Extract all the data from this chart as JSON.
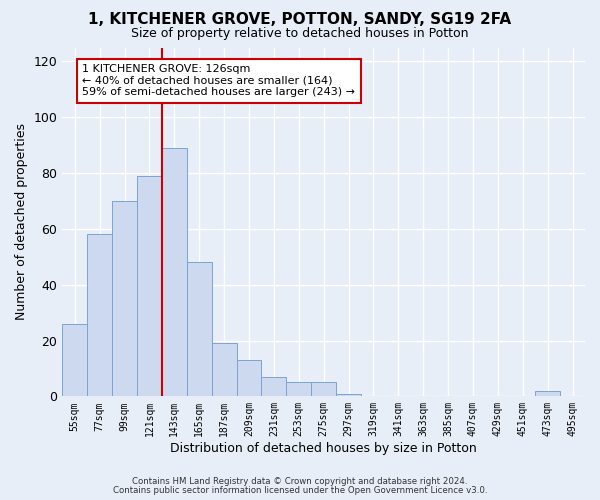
{
  "title": "1, KITCHENER GROVE, POTTON, SANDY, SG19 2FA",
  "subtitle": "Size of property relative to detached houses in Potton",
  "xlabel": "Distribution of detached houses by size in Potton",
  "ylabel": "Number of detached properties",
  "bar_labels": [
    "55sqm",
    "77sqm",
    "99sqm",
    "121sqm",
    "143sqm",
    "165sqm",
    "187sqm",
    "209sqm",
    "231sqm",
    "253sqm",
    "275sqm",
    "297sqm",
    "319sqm",
    "341sqm",
    "363sqm",
    "385sqm",
    "407sqm",
    "429sqm",
    "451sqm",
    "473sqm",
    "495sqm"
  ],
  "bar_values": [
    26,
    58,
    70,
    79,
    89,
    48,
    19,
    13,
    7,
    5,
    5,
    1,
    0,
    0,
    0,
    0,
    0,
    0,
    0,
    2,
    0
  ],
  "bar_color": "#cdd9ee",
  "bar_edge_color": "#7ba3d4",
  "ylim": [
    0,
    125
  ],
  "yticks": [
    0,
    20,
    40,
    60,
    80,
    100,
    120
  ],
  "vline_x": 3.5,
  "vline_color": "#cc0000",
  "annotation_text": "1 KITCHENER GROVE: 126sqm\n← 40% of detached houses are smaller (164)\n59% of semi-detached houses are larger (243) →",
  "annotation_box_color": "#ffffff",
  "annotation_box_edge": "#cc0000",
  "footer1": "Contains HM Land Registry data © Crown copyright and database right 2024.",
  "footer2": "Contains public sector information licensed under the Open Government Licence v3.0.",
  "bg_color": "#e8eef8",
  "plot_bg_color": "#e8eef8",
  "grid_color": "#ffffff",
  "title_fontsize": 11,
  "subtitle_fontsize": 9,
  "ylabel_fontsize": 9,
  "xlabel_fontsize": 9
}
